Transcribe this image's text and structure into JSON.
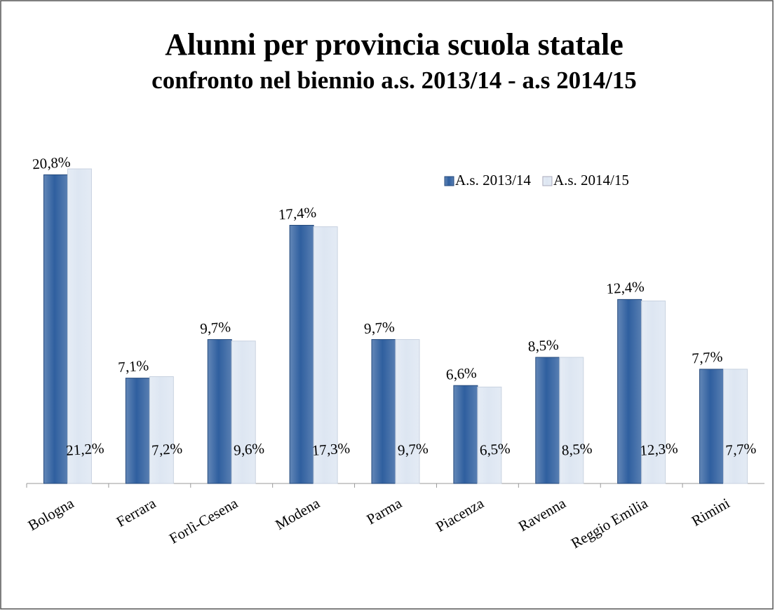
{
  "chart_data": {
    "type": "bar",
    "title": "Alunni per provincia scuola statale",
    "subtitle": "confronto nel biennio a.s. 2013/14 - a.s 2014/15",
    "categories": [
      "Bologna",
      "Ferrara",
      "Forlì-Cesena",
      "Modena",
      "Parma",
      "Piacenza",
      "Ravenna",
      "Reggio Emilia",
      "Rimini"
    ],
    "series": [
      {
        "name": "A.s. 2013/14",
        "color": "#2f5f9f",
        "values": [
          20.8,
          7.1,
          9.7,
          17.4,
          9.7,
          6.6,
          8.5,
          12.4,
          7.7
        ],
        "value_labels": [
          "20,8%",
          "7,1%",
          "9,7%",
          "17,4%",
          "9,7%",
          "6,6%",
          "8,5%",
          "12,4%",
          "7,7%"
        ]
      },
      {
        "name": "A.s. 2014/15",
        "color": "#dde6f2",
        "values": [
          21.2,
          7.2,
          9.6,
          17.3,
          9.7,
          6.5,
          8.5,
          12.3,
          7.7
        ],
        "value_labels": [
          "21,2%",
          "7,2%",
          "9,6%",
          "17,3%",
          "9,7%",
          "6,5%",
          "8,5%",
          "12,3%",
          "7,7%"
        ]
      }
    ],
    "legend": "upper right"
  }
}
